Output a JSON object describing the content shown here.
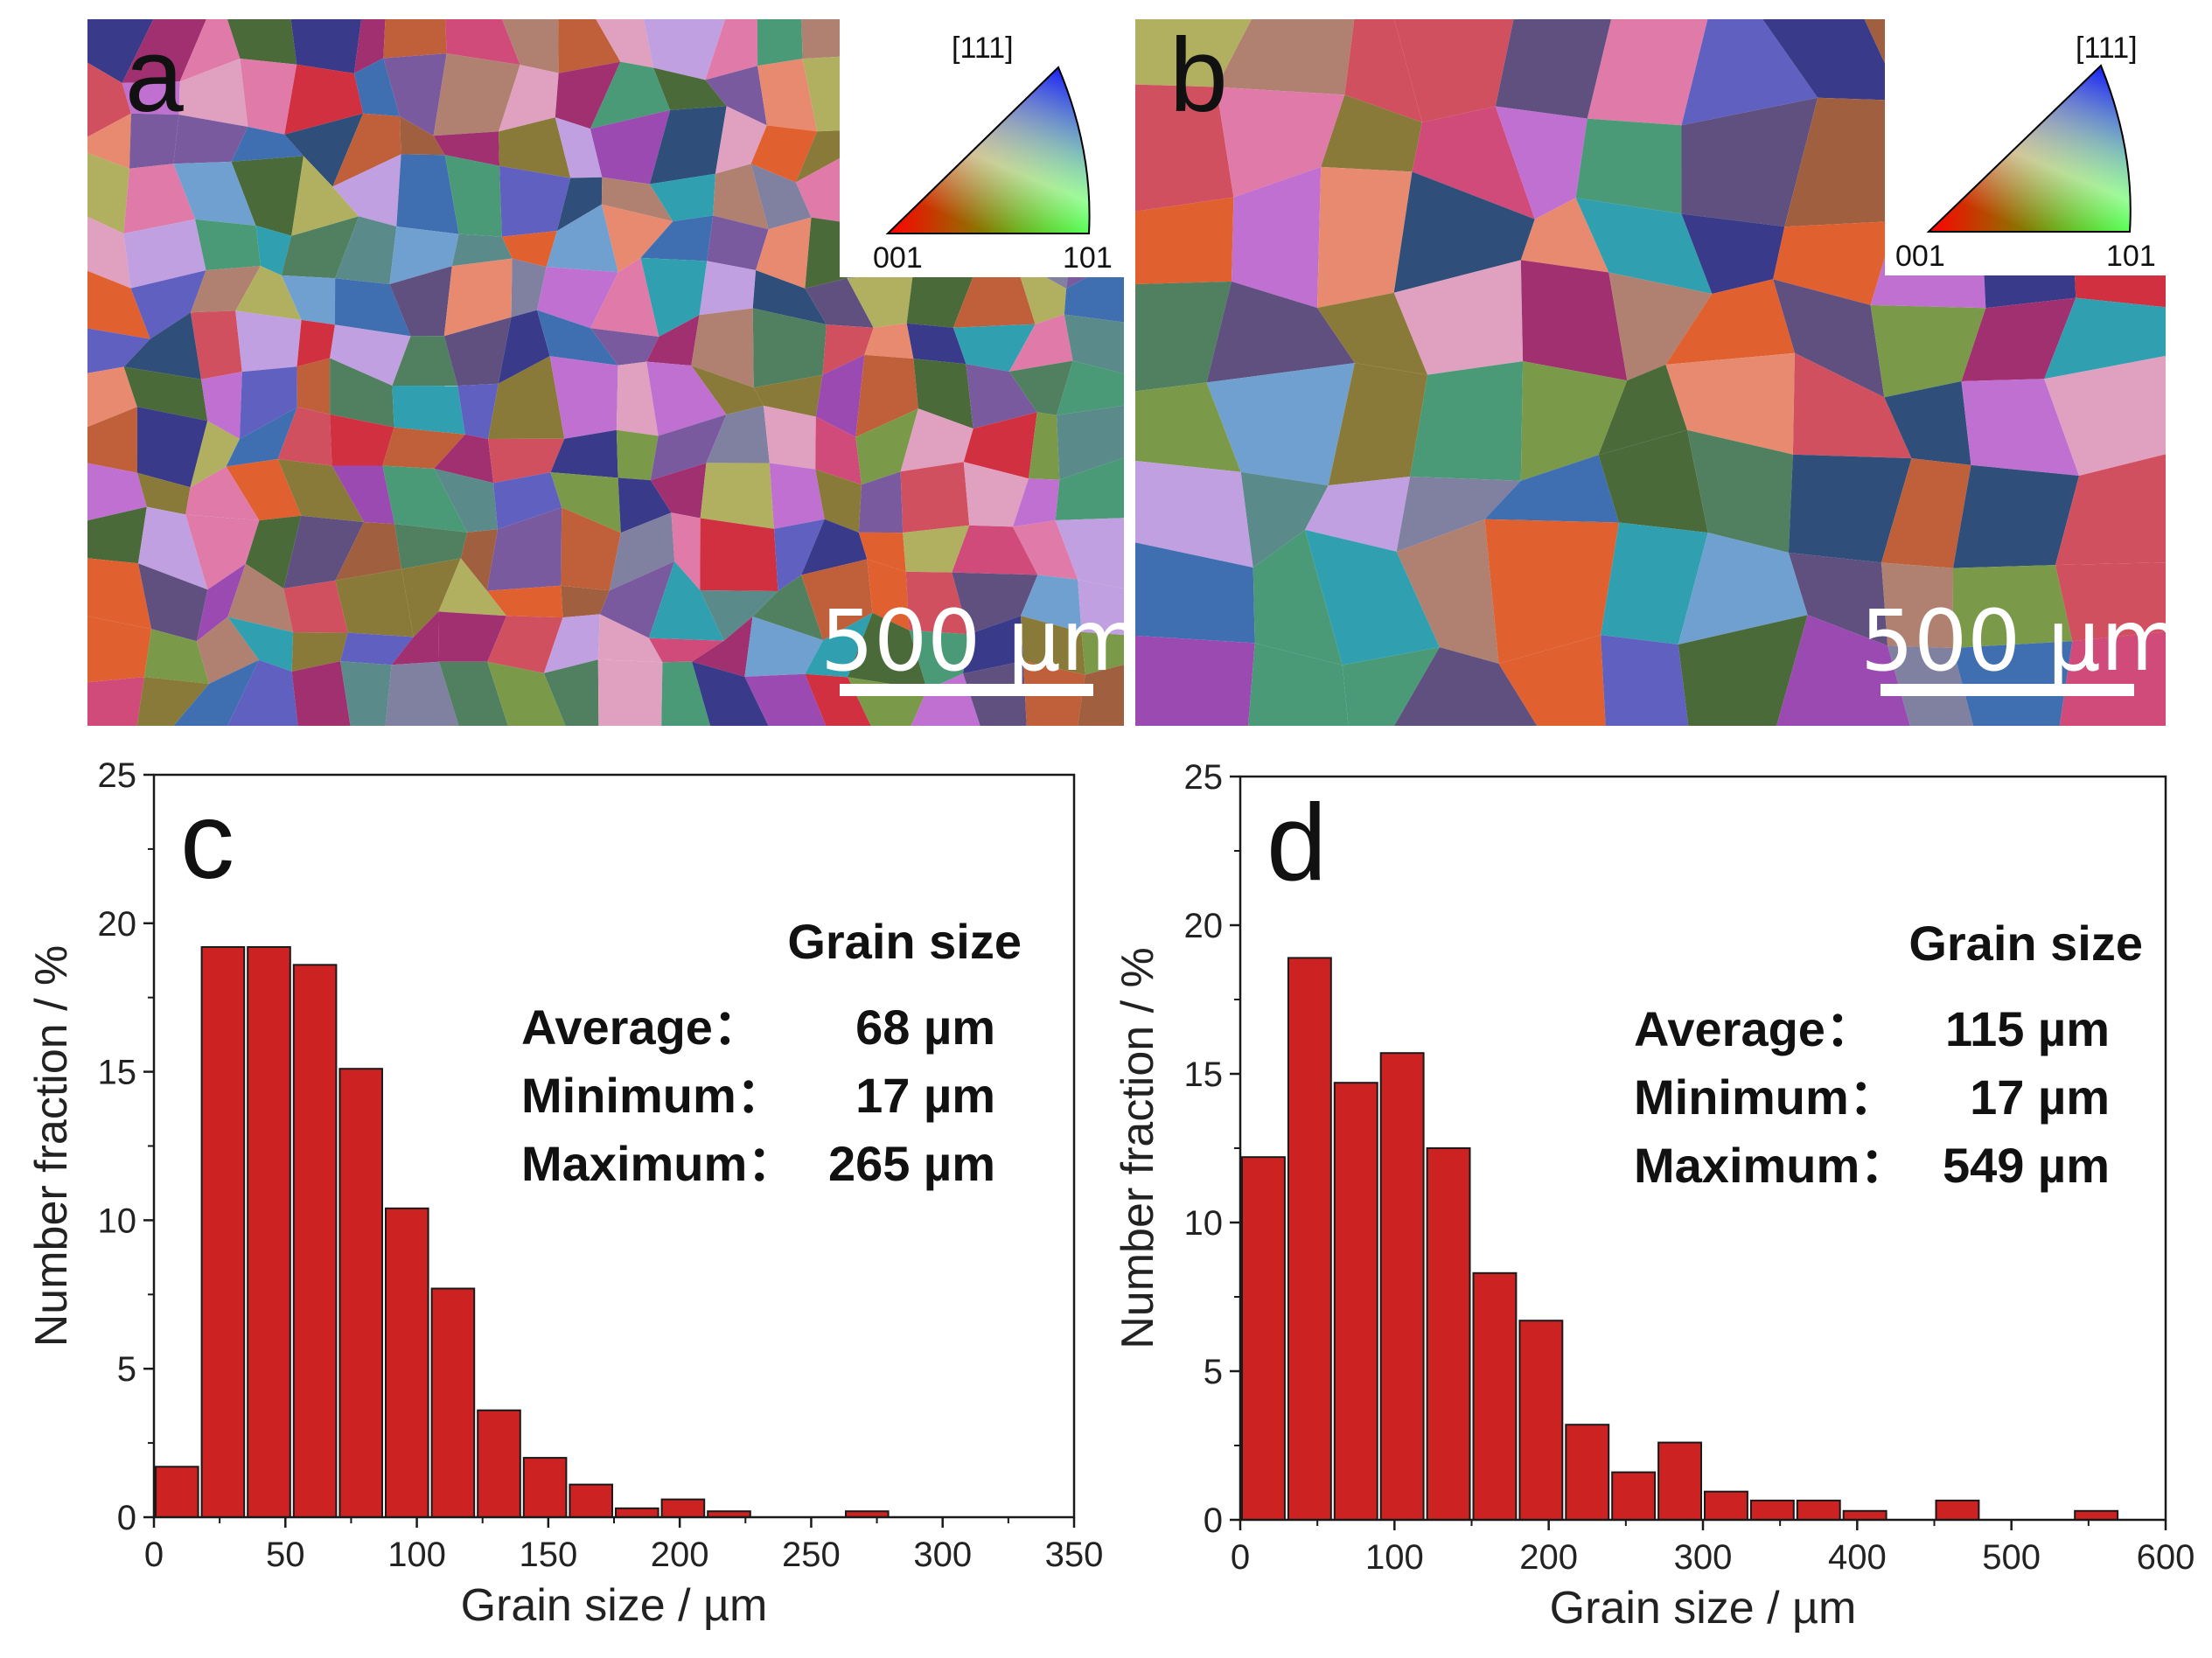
{
  "panels": {
    "a": {
      "letter": "a",
      "scalebar": "500 µm",
      "ipf_top": "[111]",
      "ipf_left": "001",
      "ipf_right": "101"
    },
    "b": {
      "letter": "b",
      "scalebar": "500 µm",
      "ipf_top": "[111]",
      "ipf_left": "001",
      "ipf_right": "101"
    }
  },
  "chart_data": [
    {
      "type": "bar",
      "letter": "c",
      "xlabel": "Grain size / µm",
      "ylabel": "Number fraction / %",
      "xlim": [
        0,
        350
      ],
      "ylim": [
        0,
        25
      ],
      "xticks": [
        0,
        50,
        100,
        150,
        200,
        250,
        300,
        350
      ],
      "yticks": [
        0,
        5,
        10,
        15,
        20,
        25
      ],
      "bin_width": 17.5,
      "x": [
        8.75,
        26.25,
        43.75,
        61.25,
        78.75,
        96.25,
        113.75,
        131.25,
        148.75,
        166.25,
        183.75,
        201.25,
        218.75,
        271.25
      ],
      "values": [
        1.7,
        19.2,
        19.2,
        18.6,
        15.1,
        10.4,
        7.7,
        3.6,
        2.0,
        1.1,
        0.3,
        0.6,
        0.2,
        0.2
      ],
      "color": "#cc2222",
      "stats": {
        "title": "Grain size",
        "rows": [
          {
            "label": "Average：",
            "value": "68 µm"
          },
          {
            "label": "Minimum：",
            "value": "17 µm"
          },
          {
            "label": "Maximum：",
            "value": "265 µm"
          }
        ]
      }
    },
    {
      "type": "bar",
      "letter": "d",
      "xlabel": "Grain size / µm",
      "ylabel": "Number fraction / %",
      "xlim": [
        0,
        600
      ],
      "ylim": [
        0,
        25
      ],
      "xticks": [
        0,
        100,
        200,
        300,
        400,
        500,
        600
      ],
      "yticks": [
        0,
        5,
        10,
        15,
        20,
        25
      ],
      "bin_width": 30,
      "x": [
        15,
        45,
        75,
        105,
        135,
        165,
        195,
        225,
        255,
        285,
        315,
        345,
        375,
        405,
        465,
        555
      ],
      "values": [
        12.2,
        18.9,
        14.7,
        15.7,
        12.5,
        8.3,
        6.7,
        3.2,
        1.6,
        2.6,
        0.95,
        0.65,
        0.65,
        0.3,
        0.65,
        0.3
      ],
      "color": "#cc2222",
      "stats": {
        "title": "Grain size",
        "rows": [
          {
            "label": "Average：",
            "value": "115 µm"
          },
          {
            "label": "Minimum：",
            "value": "17 µm"
          },
          {
            "label": "Maximum：",
            "value": "549 µm"
          }
        ]
      }
    }
  ]
}
